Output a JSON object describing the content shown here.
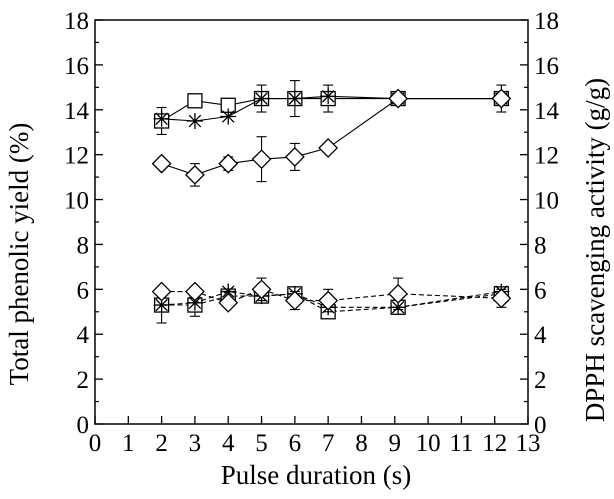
{
  "chart_data": {
    "type": "line",
    "title": "",
    "xlabel": "Pulse duration (s)",
    "ylabel_left": "Total phenolic yield (%)",
    "ylabel_right": "DPPH scavenging activity (g/g)",
    "xlim": [
      0,
      13
    ],
    "ylim": [
      0,
      18
    ],
    "ylim_right": [
      0,
      18
    ],
    "x_ticks": [
      "0",
      "1",
      "2",
      "3",
      "4",
      "5",
      "6",
      "7",
      "8",
      "9",
      "10",
      "11",
      "12",
      "13"
    ],
    "y_ticks": [
      "0",
      "2",
      "4",
      "6",
      "8",
      "10",
      "12",
      "14",
      "16",
      "18"
    ],
    "y_ticks_right": [
      "0",
      "2",
      "4",
      "6",
      "8",
      "10",
      "12",
      "14",
      "16",
      "18"
    ],
    "grid": false,
    "legend": "none",
    "line_color": "#000000",
    "series": [
      {
        "axis": "left",
        "marker": "square",
        "line_style": "solid",
        "x": [
          2,
          3,
          4,
          5,
          6,
          7,
          9.1,
          12.2
        ],
        "y": [
          13.5,
          14.4,
          14.2,
          14.5,
          14.5,
          14.5,
          14.5,
          14.5
        ],
        "error": [
          0.6,
          0,
          0,
          0.6,
          0.8,
          0.6,
          0,
          0.6
        ]
      },
      {
        "axis": "left",
        "marker": "star",
        "line_style": "solid",
        "x": [
          2,
          3,
          4,
          5,
          6,
          7,
          9.1,
          12.2
        ],
        "y": [
          13.6,
          13.5,
          13.7,
          14.5,
          14.5,
          14.6,
          14.5,
          14.5
        ],
        "error": [
          0,
          0,
          0,
          0,
          0,
          0,
          0,
          0
        ]
      },
      {
        "axis": "left",
        "marker": "diamond",
        "line_style": "solid",
        "x": [
          2,
          3,
          4,
          5,
          6,
          7,
          9.1,
          12.2
        ],
        "y": [
          11.6,
          11.1,
          11.6,
          11.8,
          11.9,
          12.3,
          14.5,
          14.5
        ],
        "error": [
          0,
          0.5,
          0.3,
          1.0,
          0.6,
          0,
          0,
          0
        ]
      },
      {
        "axis": "right",
        "marker": "square",
        "line_style": "dashed",
        "x": [
          2,
          3,
          4,
          5,
          6,
          7,
          9.1,
          12.2
        ],
        "y": [
          5.3,
          5.3,
          5.7,
          5.7,
          5.8,
          5.0,
          5.2,
          5.8
        ],
        "error": [
          0.8,
          0.5,
          0,
          0,
          0,
          0.2,
          0.2,
          0
        ]
      },
      {
        "axis": "right",
        "marker": "star",
        "line_style": "dashed",
        "x": [
          2,
          3,
          4,
          5,
          6,
          7,
          9.1,
          12.2
        ],
        "y": [
          5.3,
          5.4,
          5.9,
          5.7,
          5.8,
          5.2,
          5.2,
          5.9
        ],
        "error": [
          0,
          0,
          0,
          0,
          0,
          0,
          0,
          0
        ]
      },
      {
        "axis": "right",
        "marker": "diamond",
        "line_style": "dashed",
        "x": [
          2,
          3,
          4,
          5,
          6,
          7,
          9.1,
          12.2
        ],
        "y": [
          5.9,
          5.9,
          5.4,
          6.0,
          5.5,
          5.5,
          5.8,
          5.6
        ],
        "error": [
          0,
          0,
          0,
          0.5,
          0.4,
          0.5,
          0.7,
          0.4
        ]
      }
    ]
  }
}
